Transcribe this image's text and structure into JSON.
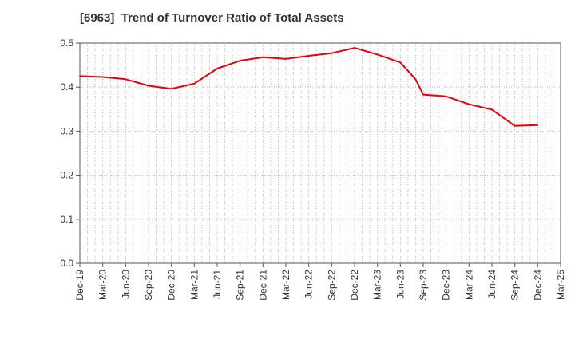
{
  "chart_data": {
    "type": "line",
    "title": "[6963]  Trend of Turnover Ratio of Total Assets",
    "xlabel": "",
    "ylabel": "",
    "ylim": [
      0,
      0.5
    ],
    "yticks": [
      "0.0",
      "0.1",
      "0.2",
      "0.3",
      "0.4",
      "0.5"
    ],
    "x_tick_labels": [
      "Dec-19",
      "Mar-20",
      "Jun-20",
      "Sep-20",
      "Dec-20",
      "Mar-21",
      "Jun-21",
      "Sep-21",
      "Dec-21",
      "Mar-22",
      "Jun-22",
      "Sep-22",
      "Dec-22",
      "Mar-23",
      "Jun-23",
      "Sep-23",
      "Dec-23",
      "Mar-24",
      "Jun-24",
      "Sep-24",
      "Dec-24",
      "Mar-25"
    ],
    "grid": true,
    "legend": "none",
    "series": [
      {
        "color": "#e8000b",
        "x": [
          "Dec-19",
          "Mar-20",
          "Jun-20",
          "Sep-20",
          "Dec-20",
          "Mar-21",
          "Jun-21",
          "Sep-21",
          "Dec-21",
          "Mar-22",
          "Jun-22",
          "Sep-22",
          "Dec-22",
          "Mar-23",
          "Jun-23",
          "Aug-23",
          "Sep-23",
          "Dec-23",
          "Mar-24",
          "Jun-24",
          "Sep-24",
          "Dec-24"
        ],
        "values": [
          0.425,
          0.423,
          0.418,
          0.403,
          0.396,
          0.408,
          0.442,
          0.46,
          0.468,
          0.464,
          0.471,
          0.477,
          0.489,
          0.474,
          0.456,
          0.418,
          0.383,
          0.379,
          0.361,
          0.349,
          0.312,
          0.314
        ]
      }
    ]
  }
}
